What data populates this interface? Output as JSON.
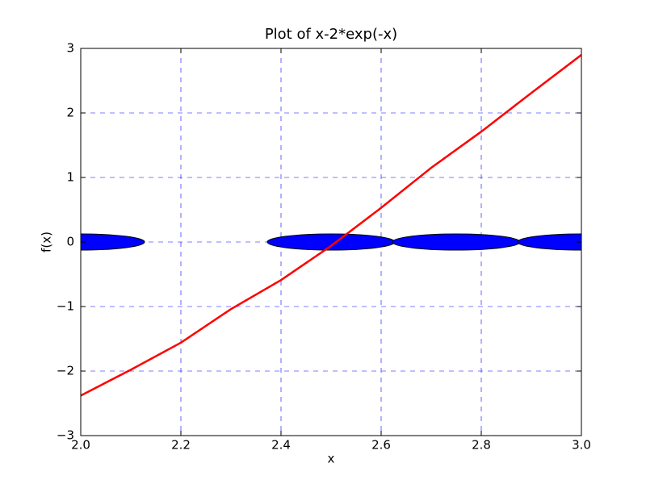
{
  "chart_data": {
    "type": "line",
    "title": "Plot of x-2*exp(-x)",
    "xlabel": "x",
    "ylabel": "f(x)",
    "x": [
      2.0,
      2.1,
      2.2,
      2.3,
      2.4,
      2.5,
      2.6,
      2.7,
      2.8,
      2.9,
      3.0
    ],
    "series": [
      {
        "name": "f(x)",
        "color": "#ff0000",
        "values": [
          -2.38,
          -1.98,
          -1.56,
          -1.04,
          -0.59,
          -0.06,
          0.53,
          1.15,
          1.71,
          2.31,
          2.9
        ]
      }
    ],
    "points": {
      "color": "#0000ff",
      "x": [
        2.0,
        2.5,
        2.75,
        3.0
      ],
      "y": [
        0,
        0,
        0,
        0
      ]
    },
    "xlim": [
      2.0,
      3.0
    ],
    "ylim": [
      -3,
      3
    ],
    "xticks": [
      {
        "value": 2.0,
        "label": "2.0"
      },
      {
        "value": 2.2,
        "label": "2.2"
      },
      {
        "value": 2.4,
        "label": "2.4"
      },
      {
        "value": 2.6,
        "label": "2.6"
      },
      {
        "value": 2.8,
        "label": "2.8"
      },
      {
        "value": 3.0,
        "label": "3.0"
      }
    ],
    "yticks": [
      {
        "value": -3,
        "label": "−3"
      },
      {
        "value": -2,
        "label": "−2"
      },
      {
        "value": -1,
        "label": "−1"
      },
      0,
      1,
      2,
      3
    ],
    "grid": true,
    "grid_color": "#0000ff"
  }
}
